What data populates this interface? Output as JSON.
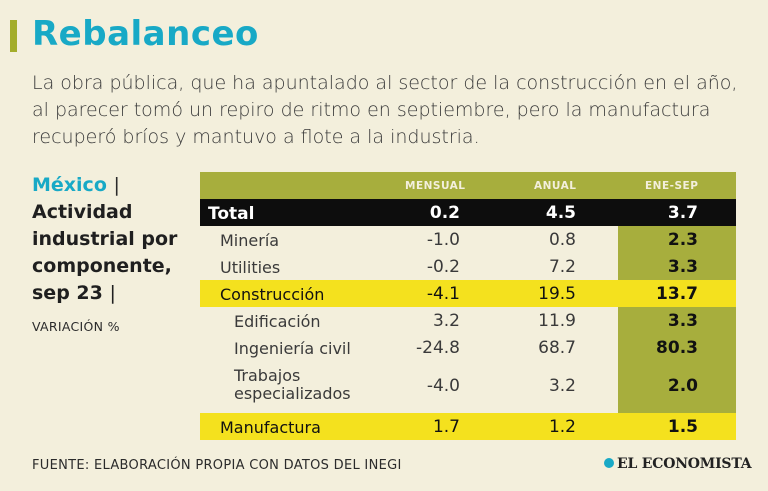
{
  "header": {
    "title": "Rebalanceo",
    "intro": "La obra pública, que ha apuntalado al sector de la construcción en el año, al parecer tomó un repiro de ritmo en septiembre, pero la manufactura recuperó bríos y mantuvo a flote a la industria."
  },
  "sidebar": {
    "country": "México",
    "separator": "|",
    "title": "Actividad industrial por componente, sep 23",
    "title_separator": "|",
    "unit": "VARIACIÓN %"
  },
  "chart_data": {
    "type": "table",
    "columns": [
      "MENSUAL",
      "ANUAL",
      "ENE-SEP"
    ],
    "rows": [
      {
        "label": "Total",
        "values": [
          "0.2",
          "4.5",
          "3.7"
        ]
      },
      {
        "label": "Minería",
        "values": [
          "-1.0",
          "0.8",
          "2.3"
        ]
      },
      {
        "label": "Utilities",
        "values": [
          "-0.2",
          "7.2",
          "3.3"
        ]
      },
      {
        "label": "Construcción",
        "values": [
          "-4.1",
          "19.5",
          "13.7"
        ]
      },
      {
        "label": "Edificación",
        "values": [
          "3.2",
          "11.9",
          "3.3"
        ]
      },
      {
        "label": "Ingeniería civil",
        "values": [
          "-24.8",
          "68.7",
          "80.3"
        ]
      },
      {
        "label": "Trabajos especializados",
        "values": [
          "-4.0",
          "3.2",
          "2.0"
        ]
      },
      {
        "label": "Manufactura",
        "values": [
          "1.7",
          "1.2",
          "1.5"
        ]
      }
    ]
  },
  "footer": {
    "source": "FUENTE: ELABORACIÓN PROPIA CON DATOS DEL INEGI",
    "brand": "EL ECONOMISTA"
  },
  "colors": {
    "accent_blue": "#18a9c6",
    "olive": "#a7ae3d",
    "highlight_yellow": "#f4e11e",
    "background": "#f3efdc"
  }
}
